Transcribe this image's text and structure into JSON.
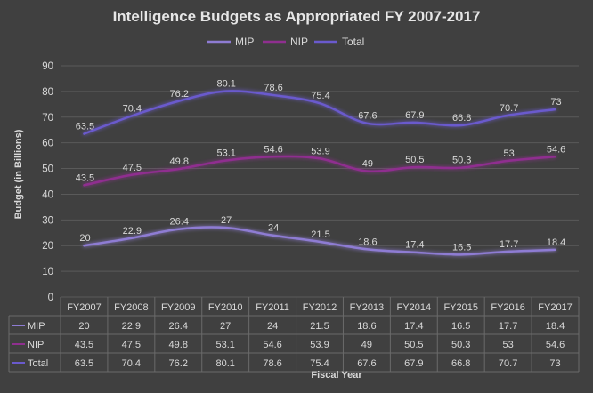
{
  "chart_data": {
    "type": "line",
    "title": "Intelligence Budgets as Appropriated FY 2007-2017",
    "xlabel": "Fiscal Year",
    "ylabel": "Budget (in Billions)",
    "ylim": [
      0,
      90
    ],
    "yticks": [
      0,
      10,
      20,
      30,
      40,
      50,
      60,
      70,
      80,
      90
    ],
    "grid": true,
    "legend_position": "top",
    "data_table": true,
    "categories": [
      "FY2007",
      "FY2008",
      "FY2009",
      "FY2010",
      "FY2011",
      "FY2012",
      "FY2013",
      "FY2014",
      "FY2015",
      "FY2016",
      "FY2017"
    ],
    "series": [
      {
        "name": "MIP",
        "color": "#8e7cd3",
        "values": [
          20,
          22.9,
          26.4,
          27,
          24,
          21.5,
          18.6,
          17.4,
          16.5,
          17.7,
          18.4
        ]
      },
      {
        "name": "NIP",
        "color": "#8f2f8f",
        "values": [
          43.5,
          47.5,
          49.8,
          53.1,
          54.6,
          53.9,
          49,
          50.5,
          50.3,
          53,
          54.6
        ]
      },
      {
        "name": "Total",
        "color": "#6a5acd",
        "values": [
          63.5,
          70.4,
          76.2,
          80.1,
          78.6,
          75.4,
          67.6,
          67.9,
          66.8,
          70.7,
          73
        ]
      }
    ]
  }
}
